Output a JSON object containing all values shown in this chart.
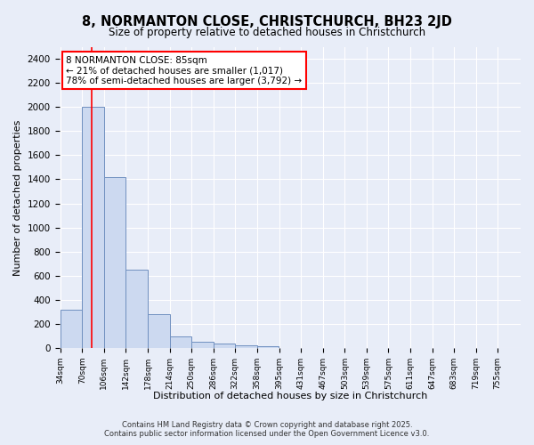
{
  "title1": "8, NORMANTON CLOSE, CHRISTCHURCH, BH23 2JD",
  "title2": "Size of property relative to detached houses in Christchurch",
  "xlabel": "Distribution of detached houses by size in Christchurch",
  "ylabel": "Number of detached properties",
  "bin_edges": [
    34,
    70,
    106,
    142,
    178,
    214,
    250,
    286,
    322,
    358,
    395,
    431,
    467,
    503,
    539,
    575,
    611,
    647,
    683,
    719,
    755
  ],
  "bar_heights": [
    320,
    2000,
    1420,
    650,
    280,
    100,
    50,
    40,
    25,
    15,
    0,
    0,
    0,
    0,
    0,
    0,
    0,
    0,
    0,
    0
  ],
  "bar_color": "#ccd9f0",
  "bar_edgecolor": "#7090c0",
  "bar_linewidth": 0.7,
  "vline_x": 85,
  "vline_color": "red",
  "vline_linewidth": 1.2,
  "annotation_text": "8 NORMANTON CLOSE: 85sqm\n← 21% of detached houses are smaller (1,017)\n78% of semi-detached houses are larger (3,792) →",
  "ylim": [
    0,
    2500
  ],
  "yticks": [
    0,
    200,
    400,
    600,
    800,
    1000,
    1200,
    1400,
    1600,
    1800,
    2000,
    2200,
    2400
  ],
  "bg_color": "#e8edf8",
  "plot_bg_color": "#e8edf8",
  "footer1": "Contains HM Land Registry data © Crown copyright and database right 2025.",
  "footer2": "Contains public sector information licensed under the Open Government Licence v3.0."
}
